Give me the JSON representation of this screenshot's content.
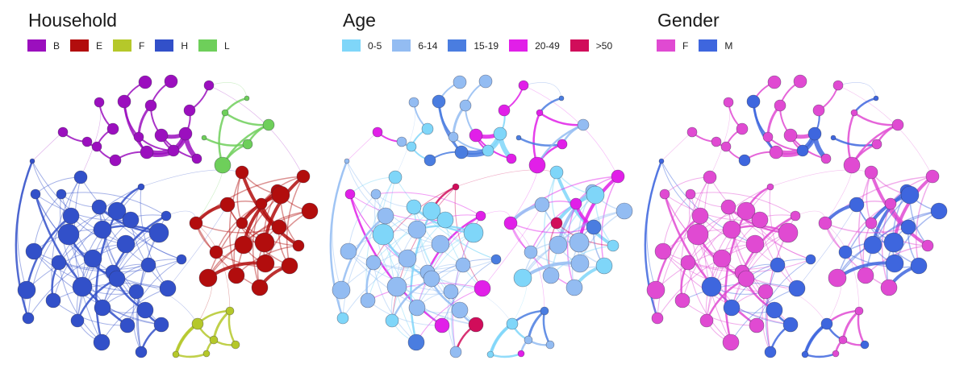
{
  "panels": [
    {
      "title": "Household",
      "attribute": "household",
      "legend": [
        {
          "label": "B",
          "color": "#9b0fbe"
        },
        {
          "label": "E",
          "color": "#b20d0d"
        },
        {
          "label": "F",
          "color": "#b5c82a"
        },
        {
          "label": "H",
          "color": "#3250c9"
        },
        {
          "label": "L",
          "color": "#6ecf5a"
        }
      ]
    },
    {
      "title": "Age",
      "attribute": "age",
      "legend": [
        {
          "label": "0-5",
          "color": "#7fd6f9"
        },
        {
          "label": "6-14",
          "color": "#93bcf2"
        },
        {
          "label": "15-19",
          "color": "#4a7de0"
        },
        {
          "label": "20-49",
          "color": "#e11fe8"
        },
        {
          "label": ">50",
          "color": "#d10d5a"
        }
      ]
    },
    {
      "title": "Gender",
      "attribute": "gender",
      "legend": [
        {
          "label": "F",
          "color": "#e04ad2"
        },
        {
          "label": "M",
          "color": "#3e66de"
        }
      ]
    }
  ]
}
